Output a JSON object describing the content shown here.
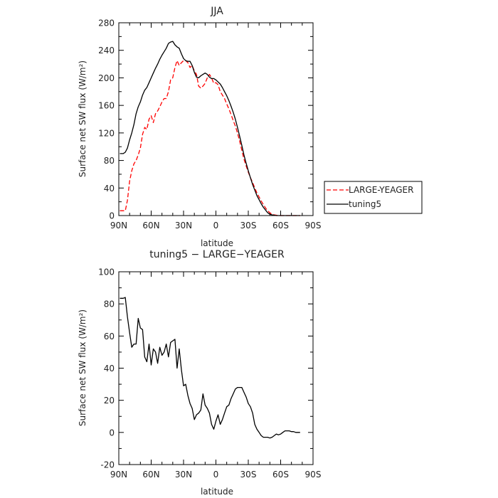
{
  "chart_data": [
    {
      "type": "line",
      "title": "JJA",
      "xlabel": "latitude",
      "ylabel": "Surface net SW flux (W/m²)",
      "xlim": [
        90,
        -90
      ],
      "ylim": [
        0,
        280
      ],
      "xticks": [
        90,
        60,
        30,
        0,
        -30,
        -60,
        -90
      ],
      "xtick_labels": [
        "90N",
        "60N",
        "30N",
        "0",
        "30S",
        "60S",
        "90S"
      ],
      "yticks": [
        0,
        40,
        80,
        120,
        160,
        200,
        240,
        280
      ],
      "legend": "right",
      "series": [
        {
          "name": "LARGE-YEAGER",
          "color": "#ff0000",
          "dash": "dashed",
          "x": [
            89,
            86,
            84,
            82,
            80,
            78,
            76,
            74,
            72,
            70,
            68,
            66,
            64,
            62,
            60,
            58,
            56,
            54,
            52,
            50,
            48,
            46,
            44,
            42,
            40,
            38,
            36,
            34,
            32,
            30,
            28,
            26,
            24,
            22,
            20,
            18,
            16,
            14,
            12,
            10,
            8,
            6,
            4,
            2,
            0,
            -2,
            -4,
            -6,
            -8,
            -10,
            -12,
            -14,
            -16,
            -18,
            -20,
            -22,
            -24,
            -26,
            -28,
            -30,
            -32,
            -34,
            -36,
            -38,
            -40,
            -42,
            -44,
            -46,
            -48,
            -50,
            -52,
            -54,
            -56,
            -58,
            -60,
            -62,
            -64,
            -66,
            -68,
            -70,
            -72,
            -74,
            -76,
            -78
          ],
          "values": [
            7,
            7,
            7,
            22,
            50,
            65,
            75,
            80,
            88,
            98,
            118,
            128,
            125,
            140,
            145,
            135,
            148,
            152,
            158,
            165,
            170,
            170,
            180,
            197,
            200,
            215,
            225,
            218,
            222,
            225,
            225,
            222,
            215,
            218,
            210,
            205,
            188,
            185,
            188,
            192,
            200,
            205,
            200,
            192,
            193,
            190,
            180,
            175,
            170,
            162,
            155,
            147,
            138,
            130,
            120,
            108,
            95,
            82,
            72,
            63,
            55,
            48,
            40,
            33,
            27,
            21,
            16,
            11,
            7,
            4,
            2,
            1,
            0.5,
            0,
            0,
            0,
            0,
            0,
            0,
            0,
            0,
            0,
            0,
            0
          ]
        },
        {
          "name": "tuning5",
          "color": "#000000",
          "dash": "solid",
          "x": [
            89,
            86,
            84,
            82,
            80,
            78,
            76,
            74,
            72,
            70,
            68,
            66,
            64,
            62,
            60,
            58,
            56,
            54,
            52,
            50,
            48,
            46,
            44,
            42,
            40,
            38,
            36,
            34,
            32,
            30,
            28,
            26,
            24,
            22,
            20,
            18,
            16,
            14,
            12,
            10,
            8,
            6,
            4,
            2,
            0,
            -2,
            -4,
            -6,
            -8,
            -10,
            -12,
            -14,
            -16,
            -18,
            -20,
            -22,
            -24,
            -26,
            -28,
            -30,
            -32,
            -34,
            -36,
            -38,
            -40,
            -42,
            -44,
            -46,
            -48,
            -50,
            -52,
            -54,
            -56,
            -58,
            -60,
            -62,
            -64,
            -66,
            -68,
            -70,
            -72,
            -74,
            -76,
            -78
          ],
          "values": [
            90,
            90,
            92,
            98,
            110,
            120,
            132,
            148,
            158,
            165,
            175,
            182,
            186,
            193,
            200,
            207,
            214,
            220,
            227,
            233,
            238,
            243,
            250,
            252,
            253,
            248,
            245,
            243,
            235,
            228,
            225,
            224,
            224,
            218,
            208,
            201,
            200,
            203,
            205,
            207,
            205,
            201,
            199,
            199,
            197,
            194,
            191,
            186,
            180,
            174,
            167,
            159,
            150,
            140,
            128,
            115,
            102,
            88,
            76,
            65,
            55,
            45,
            37,
            29,
            23,
            17,
            12,
            8,
            4,
            2,
            1,
            0.5,
            0,
            0,
            0,
            0,
            0,
            0,
            0,
            0,
            0,
            0,
            0,
            0
          ]
        }
      ]
    },
    {
      "type": "line",
      "title": "tuning5 − LARGE−YEAGER",
      "xlabel": "latitude",
      "ylabel": "Surface net SW flux (W/m²)",
      "xlim": [
        90,
        -90
      ],
      "ylim": [
        -20,
        100
      ],
      "xticks": [
        90,
        60,
        30,
        0,
        -30,
        -60,
        -90
      ],
      "xtick_labels": [
        "90N",
        "60N",
        "30N",
        "0",
        "30S",
        "60S",
        "90S"
      ],
      "yticks": [
        -20,
        0,
        20,
        40,
        60,
        80,
        100
      ],
      "series": [
        {
          "color": "#000000",
          "dash": "solid",
          "x": [
            89,
            86,
            84,
            82,
            80,
            78,
            76,
            74,
            72,
            70,
            68,
            66,
            64,
            62,
            60,
            58,
            56,
            54,
            52,
            50,
            48,
            46,
            44,
            42,
            40,
            38,
            36,
            34,
            32,
            30,
            28,
            26,
            24,
            22,
            20,
            18,
            16,
            14,
            12,
            10,
            8,
            6,
            4,
            2,
            0,
            -2,
            -4,
            -6,
            -8,
            -10,
            -12,
            -14,
            -16,
            -18,
            -20,
            -22,
            -24,
            -26,
            -28,
            -30,
            -32,
            -34,
            -36,
            -38,
            -40,
            -42,
            -44,
            -46,
            -48,
            -50,
            -52,
            -54,
            -56,
            -58,
            -60,
            -62,
            -64,
            -66,
            -68,
            -70,
            -72,
            -74,
            -76,
            -78
          ],
          "values": [
            83.5,
            83.5,
            84,
            72,
            62,
            53,
            55,
            55,
            71,
            65,
            64,
            47,
            44,
            55,
            42,
            52,
            50,
            43,
            53,
            48,
            50,
            55,
            47,
            56,
            57,
            58,
            40,
            52,
            39,
            29,
            30,
            23,
            18,
            15,
            8,
            11,
            12,
            14,
            24,
            17,
            15,
            12,
            5,
            2,
            7,
            11,
            5,
            8,
            12,
            16,
            17,
            21,
            24,
            27,
            28,
            28,
            28,
            25,
            22,
            18,
            16,
            12,
            5,
            2,
            0,
            -2,
            -3,
            -3,
            -3,
            -3.5,
            -3,
            -2,
            -1,
            -1.5,
            -1,
            0,
            1,
            1,
            1,
            0.5,
            0.5,
            0,
            0,
            0
          ]
        }
      ]
    }
  ]
}
